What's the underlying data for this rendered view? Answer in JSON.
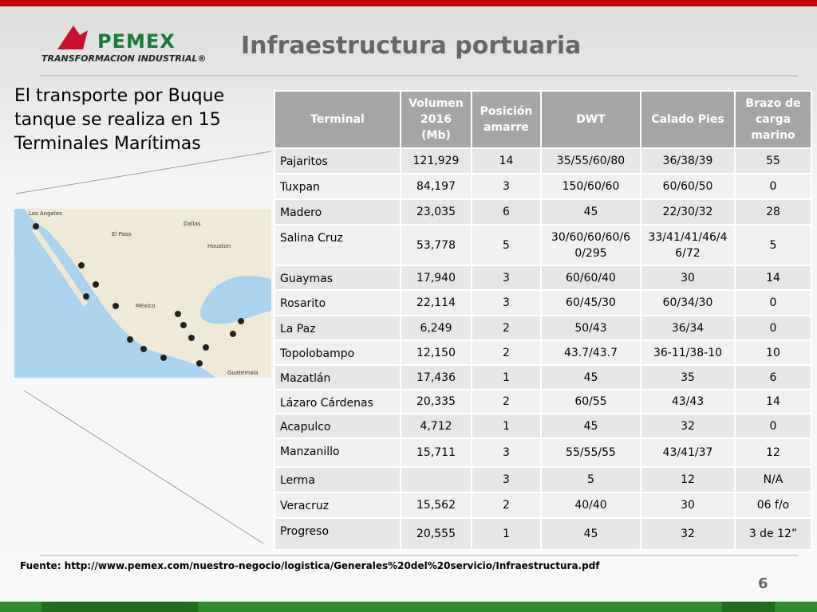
{
  "header": {
    "logo_name": "PEMEX",
    "logo_subtitle": "TRANSFORMACION INDUSTRIAL®",
    "title": "Infraestructura portuaria"
  },
  "intro": "El transporte por Buque tanque se realiza en 15 Terminales Marítimas",
  "map": {
    "labels": [
      "Los Angeles",
      "El Paso",
      "Dallas",
      "Houston",
      "México",
      "Guatemala"
    ]
  },
  "table": {
    "headers": [
      "Terminal",
      "Volumen 2016 (Mb)",
      "Posición amarre",
      "DWT",
      "Calado Pies",
      "Brazo de carga marino"
    ],
    "rows": [
      [
        "Pajaritos",
        "121,929",
        "14",
        "35/55/60/80",
        "36/38/39",
        "55"
      ],
      [
        "Tuxpan",
        "84,197",
        "3",
        "150/60/60",
        "60/60/50",
        "0"
      ],
      [
        "Madero",
        "23,035",
        "6",
        "45",
        "22/30/32",
        "28"
      ],
      [
        "Salina Cruz",
        "53,778",
        "5",
        "30/60/60/60/60/295",
        "33/41/41/46/46/72",
        "5"
      ],
      [
        "Guaymas",
        "17,940",
        "3",
        "60/60/40",
        "30",
        "14"
      ],
      [
        "Rosarito",
        "22,114",
        "3",
        "60/45/30",
        "60/34/30",
        "0"
      ],
      [
        "La Paz",
        "6,249",
        "2",
        "50/43",
        "36/34",
        "0"
      ],
      [
        "Topolobampo",
        "12,150",
        "2",
        "43.7/43.7",
        "36-11/38-10",
        "10"
      ],
      [
        "Mazatlán",
        "17,436",
        "1",
        "45",
        "35",
        "6"
      ],
      [
        "Lázaro Cárdenas",
        "20,335",
        "2",
        "60/55",
        "43/43",
        "14"
      ],
      [
        "Acapulco",
        "4,712",
        "1",
        "45",
        "32",
        "0"
      ],
      [
        "Manzanillo",
        "15,711",
        "3",
        "55/55/55",
        "43/41/37",
        "12"
      ],
      [
        "Lerma",
        null,
        "3",
        "5",
        "12",
        "N/A"
      ],
      [
        "Veracruz",
        "15,562",
        "2",
        "40/40",
        "30",
        "06 f/o"
      ],
      [
        "Progreso",
        "20,555",
        "1",
        "45",
        "32",
        "3 de 12”"
      ]
    ]
  },
  "source": "Fuente: http://www.pemex.com/nuestro-negocio/logistica/Generales%20del%20servicio/Infraestructura.pdf",
  "page_number": "6"
}
